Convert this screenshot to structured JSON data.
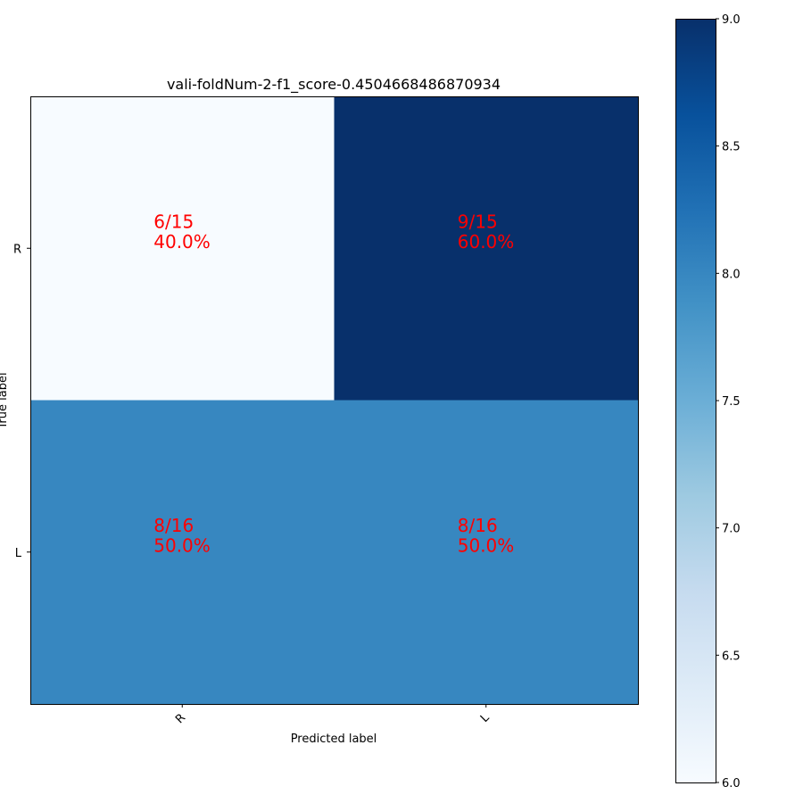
{
  "chart_data": {
    "type": "heatmap",
    "title": "vali-foldNum-2-f1_score-0.4504668486870934",
    "xlabel": "Predicted label",
    "ylabel": "True label",
    "x_categories": [
      "R",
      "L"
    ],
    "y_categories": [
      "R",
      "L"
    ],
    "values": [
      [
        6,
        9
      ],
      [
        8,
        8
      ]
    ],
    "row_totals": [
      15,
      16
    ],
    "cell_annotations": [
      [
        "6/15\n40.0%",
        "9/15\n60.0%"
      ],
      [
        "8/16\n50.0%",
        "8/16\n50.0%"
      ]
    ],
    "colormap": "Blues",
    "colorbar": {
      "range": [
        6.0,
        9.0
      ],
      "ticks": [
        6.0,
        6.5,
        7.0,
        7.5,
        8.0,
        8.5,
        9.0
      ],
      "tick_labels": [
        "6.0",
        "6.5",
        "7.0",
        "7.5",
        "8.0",
        "8.5",
        "9.0"
      ]
    },
    "annotation_color": "#ff0000",
    "grid": false
  }
}
